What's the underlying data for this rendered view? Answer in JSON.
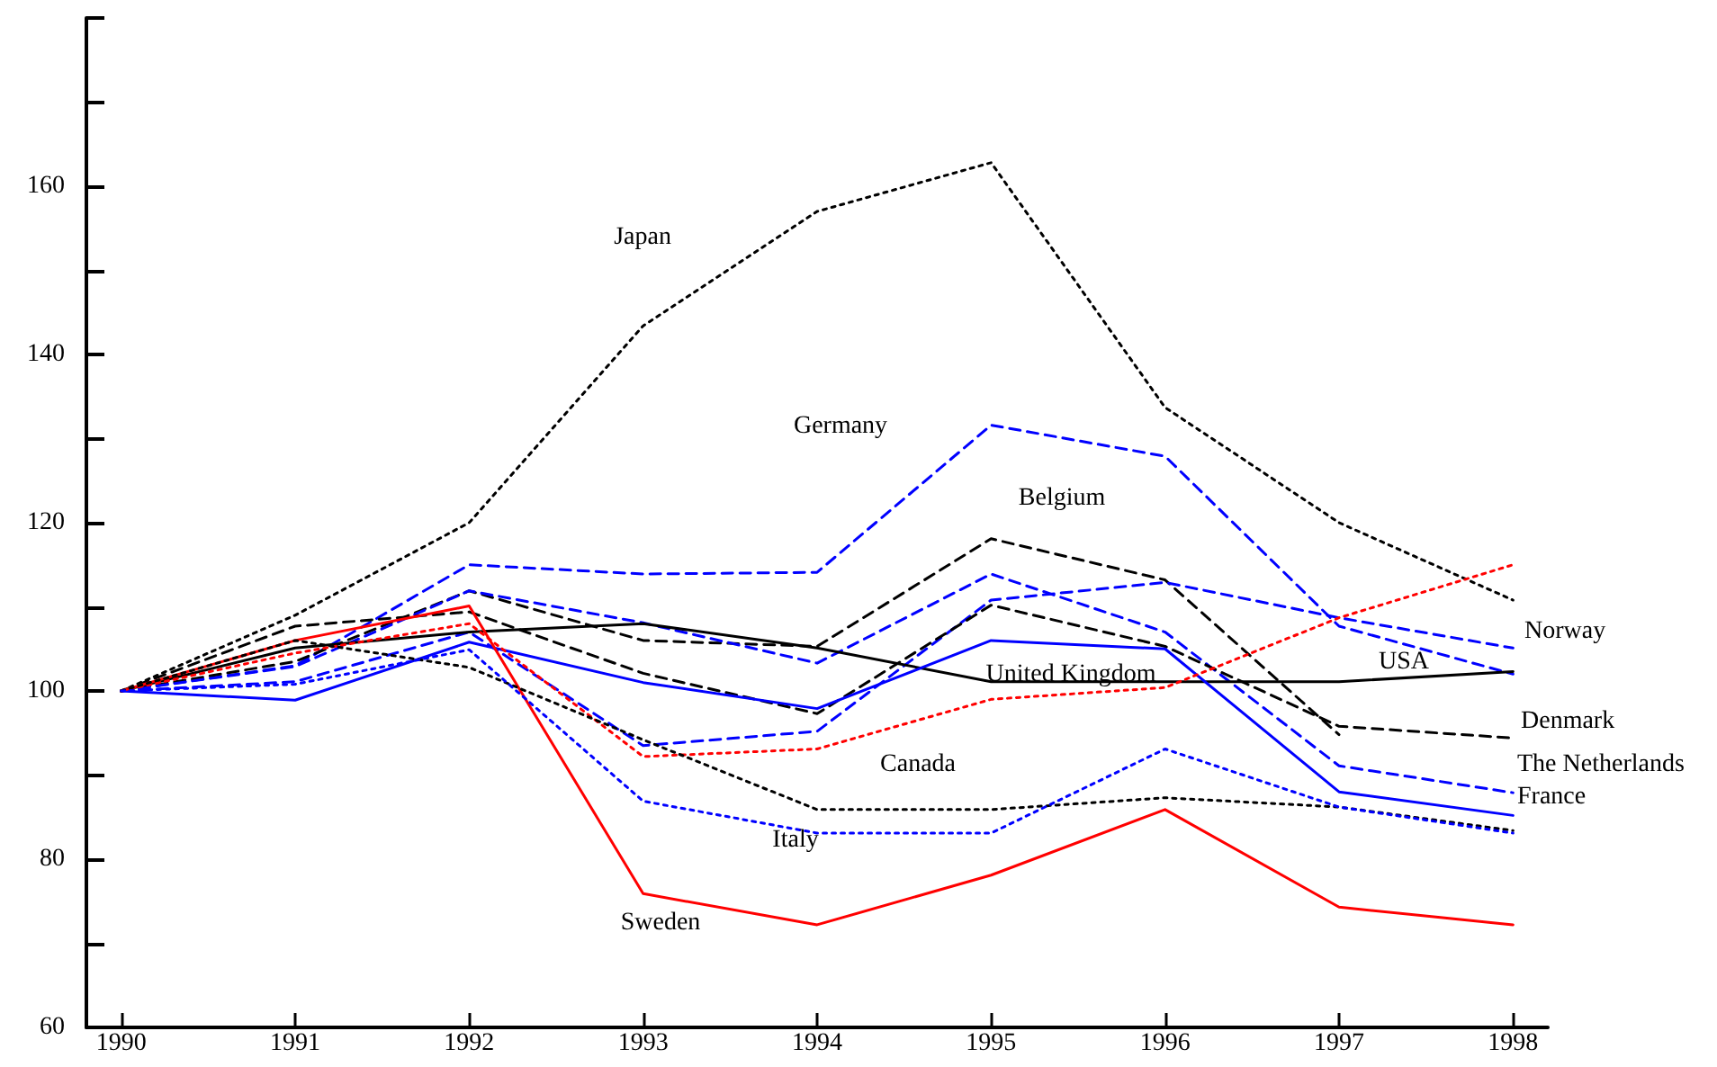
{
  "chart_data": {
    "type": "line",
    "x": [
      1990,
      1991,
      1992,
      1993,
      1994,
      1995,
      1996,
      1997,
      1998
    ],
    "xlim": [
      1989.8,
      1998.2
    ],
    "xticks": [
      1990,
      1991,
      1992,
      1993,
      1994,
      1995,
      1996,
      1997,
      1998
    ],
    "ylim": [
      60,
      180
    ],
    "yticks": [
      60,
      {
        "value": 70,
        "label": null
      },
      80,
      {
        "value": 90,
        "label": null
      },
      100,
      {
        "value": 110,
        "label": null
      },
      120,
      {
        "value": 130,
        "label": null
      },
      140,
      {
        "value": 150,
        "label": null
      },
      160,
      {
        "value": 170,
        "label": null
      },
      {
        "value": 180,
        "label": null
      }
    ],
    "grid": false,
    "marker": "none",
    "series": [
      {
        "color": "#000000",
        "line_style": "dotted",
        "values": [
          100,
          109,
          120,
          143.4,
          157,
          162.8,
          133.7,
          120,
          110.8
        ]
      },
      {
        "color": "#0000ff",
        "line_style": "dashed",
        "values": [
          100,
          103,
          115,
          113.9,
          114.1,
          131.6,
          127.9,
          107.7,
          102
        ]
      },
      {
        "color": "#000000",
        "line_style": "dashed",
        "values": [
          100,
          103.5,
          111.9,
          106,
          105.3,
          118.1,
          113.2,
          94.8,
          null
        ]
      },
      {
        "color": "#0000ff",
        "line_style": "dashed",
        "values": [
          100,
          102.9,
          111.9,
          108.1,
          103.3,
          113.9,
          107,
          91.1,
          87.9
        ]
      },
      {
        "color": "#0000ff",
        "line_style": "dashed",
        "values": [
          100,
          101.1,
          107,
          93.5,
          95.2,
          110.8,
          112.9,
          108.7,
          105.1
        ]
      },
      {
        "color": "#000000",
        "line_style": "dashed",
        "values": [
          100,
          107.7,
          109.4,
          102.1,
          97.3,
          110.2,
          105.3,
          95.8,
          94.4
        ]
      },
      {
        "color": "#000000",
        "line_style": "solid",
        "values": [
          100,
          105.1,
          107,
          108,
          105.1,
          101.1,
          101.1,
          101.1,
          102.3
        ]
      },
      {
        "color": "#0000ff",
        "line_style": "solid",
        "values": [
          100,
          98.9,
          105.8,
          101,
          97.9,
          106,
          105,
          88,
          85.2
        ]
      },
      {
        "color": "#ff0000",
        "line_style": "dotted",
        "values": [
          100,
          104.5,
          108,
          92.2,
          93.1,
          99,
          100.4,
          108.7,
          115
        ]
      },
      {
        "color": "#ff0000",
        "line_style": "solid",
        "values": [
          100,
          106,
          110.1,
          75.9,
          72.2,
          78.1,
          85.9,
          74.3,
          72.2
        ]
      },
      {
        "color": "#000000",
        "line_style": "dotted",
        "values": [
          100,
          106,
          102.8,
          94.2,
          85.9,
          85.9,
          87.3,
          86.2,
          83.4
        ]
      },
      {
        "color": "#0000ff",
        "line_style": "dotted",
        "values": [
          100,
          100.8,
          104.9,
          86.9,
          83.1,
          83.1,
          93.1,
          86.2,
          83.1
        ]
      }
    ],
    "annotations": [
      "Japan",
      "Germany",
      "Belgium",
      "Italy",
      "Sweden",
      "Canada",
      "United Kingdom",
      "USA",
      "Norway",
      "Denmark",
      "The Netherlands",
      "France"
    ]
  }
}
